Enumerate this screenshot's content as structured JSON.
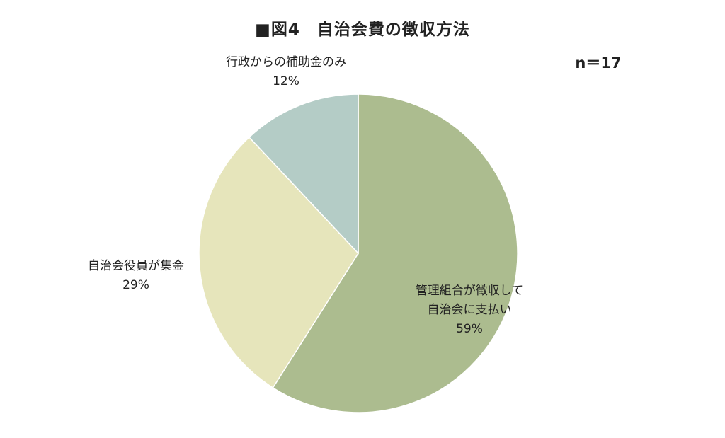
{
  "chart_data": {
    "type": "pie",
    "title": "■図4　自治会費の徴収方法",
    "sample_size_label": "n＝17",
    "slices": [
      {
        "label_lines": [
          "管理組合が徴収して",
          "自治会に支払い"
        ],
        "value": 59,
        "value_label": "59%",
        "color": "#acbc8f"
      },
      {
        "label_lines": [
          "自治会役員が集金"
        ],
        "value": 29,
        "value_label": "29%",
        "color": "#e6e5bb"
      },
      {
        "label_lines": [
          "行政からの補助金のみ"
        ],
        "value": 12,
        "value_label": "12%",
        "color": "#b4ccc6"
      }
    ],
    "start_angle": "12 o'clock",
    "direction": "clockwise",
    "legend": "none"
  }
}
